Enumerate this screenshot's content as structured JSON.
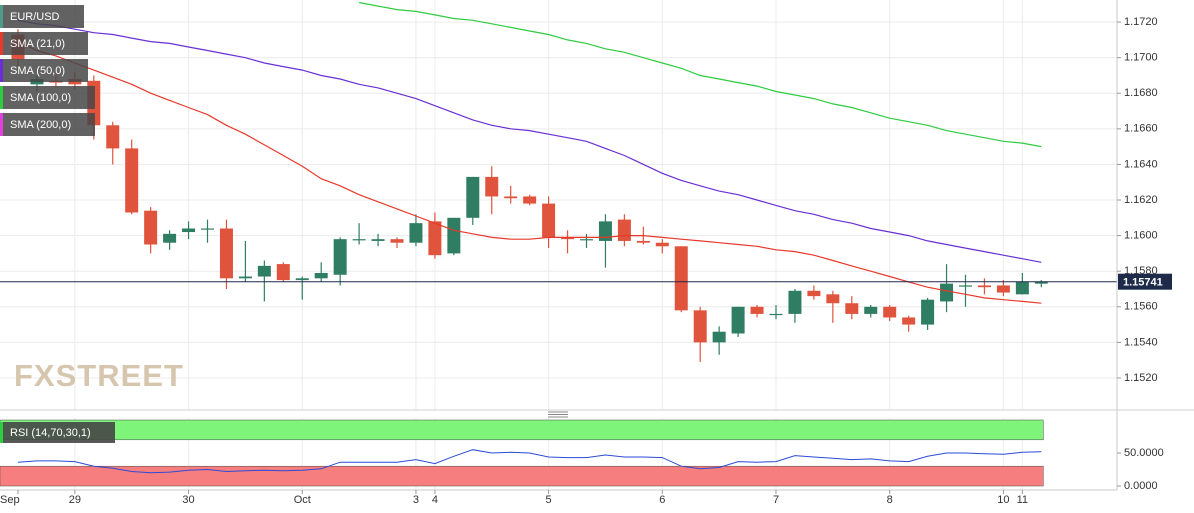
{
  "chart_data": [
    {
      "type": "candlestick",
      "title": "EUR/USD",
      "watermark": "FXSTREET",
      "categories": [
        "Sep",
        null,
        null,
        "29",
        null,
        null,
        null,
        null,
        null,
        "30",
        null,
        null,
        null,
        null,
        null,
        "Oct",
        null,
        null,
        null,
        null,
        null,
        "3",
        "4",
        null,
        null,
        null,
        null,
        null,
        "5",
        null,
        null,
        null,
        null,
        null,
        "6",
        null,
        null,
        null,
        null,
        null,
        "7",
        null,
        null,
        null,
        null,
        null,
        "8",
        null,
        null,
        null,
        null,
        null,
        "10",
        "11",
        null
      ],
      "open": [
        1.1713,
        1.1685,
        1.1687,
        1.1688,
        1.1687,
        1.1662,
        1.1649,
        1.1614,
        1.1596,
        1.1602,
        1.1604,
        1.1604,
        1.1576,
        1.1577,
        1.1584,
        1.1575,
        1.1576,
        1.1578,
        1.1598,
        1.1597,
        1.1598,
        1.1596,
        1.1608,
        1.159,
        1.161,
        1.1633,
        1.1622,
        1.1622,
        1.1618,
        1.1599,
        1.1598,
        1.1597,
        1.1609,
        1.1597,
        1.1596,
        1.1594,
        1.1558,
        1.154,
        1.1545,
        1.156,
        1.1556,
        1.1556,
        1.1569,
        1.1567,
        1.1562,
        1.1556,
        1.156,
        1.1554,
        1.155,
        1.1563,
        1.1572,
        1.1572,
        1.1572,
        1.1567,
        1.1573
      ],
      "high": [
        1.1716,
        1.169,
        1.169,
        1.1692,
        1.169,
        1.1664,
        1.1654,
        1.1616,
        1.1603,
        1.1608,
        1.1609,
        1.1609,
        1.1597,
        1.1586,
        1.1585,
        1.1577,
        1.1585,
        1.1599,
        1.1607,
        1.1601,
        1.1599,
        1.1612,
        1.1613,
        1.161,
        1.1633,
        1.1639,
        1.1628,
        1.1623,
        1.1622,
        1.1603,
        1.1601,
        1.1612,
        1.1612,
        1.1605,
        1.1598,
        1.1594,
        1.156,
        1.1549,
        1.156,
        1.1561,
        1.1561,
        1.157,
        1.1572,
        1.1569,
        1.1566,
        1.1561,
        1.1561,
        1.1555,
        1.1565,
        1.1584,
        1.1578,
        1.1576,
        1.1575,
        1.1579,
        1.1575
      ],
      "low": [
        1.1693,
        1.1681,
        1.1683,
        1.1682,
        1.1654,
        1.164,
        1.1612,
        1.159,
        1.1592,
        1.1598,
        1.1596,
        1.157,
        1.1574,
        1.1563,
        1.1574,
        1.1564,
        1.1574,
        1.1572,
        1.1595,
        1.1594,
        1.1593,
        1.1594,
        1.1587,
        1.1589,
        1.1606,
        1.1612,
        1.1618,
        1.1617,
        1.1593,
        1.159,
        1.1593,
        1.1582,
        1.1594,
        1.1595,
        1.159,
        1.1557,
        1.1529,
        1.1533,
        1.1543,
        1.1554,
        1.1553,
        1.1551,
        1.1564,
        1.1551,
        1.1553,
        1.1554,
        1.1552,
        1.1546,
        1.1547,
        1.1557,
        1.156,
        1.1567,
        1.1566,
        1.1567,
        1.1571
      ],
      "close": [
        1.1699,
        1.1688,
        1.1686,
        1.1685,
        1.1662,
        1.1649,
        1.1613,
        1.1595,
        1.1601,
        1.1604,
        1.1604,
        1.1576,
        1.1577,
        1.1583,
        1.1575,
        1.1576,
        1.1579,
        1.1598,
        1.1598,
        1.1598,
        1.1596,
        1.1607,
        1.1589,
        1.161,
        1.1633,
        1.1622,
        1.1621,
        1.1618,
        1.1599,
        1.1598,
        1.1598,
        1.1608,
        1.1597,
        1.1596,
        1.1594,
        1.1558,
        1.154,
        1.1546,
        1.156,
        1.1556,
        1.1556,
        1.1569,
        1.1566,
        1.1562,
        1.1556,
        1.156,
        1.1554,
        1.155,
        1.1564,
        1.1573,
        1.1572,
        1.1571,
        1.1568,
        1.1574,
        1.1574
      ],
      "up_color": "#2f7d62",
      "down_color": "#e0533d",
      "series": [
        {
          "name": "SMA (21,0)",
          "color": "#e8382a",
          "values": [
            1.1709,
            1.1704,
            1.1701,
            1.1697,
            1.1693,
            1.1689,
            1.1685,
            1.168,
            1.1676,
            1.1672,
            1.1668,
            1.1662,
            1.1657,
            1.1651,
            1.1645,
            1.1639,
            1.1632,
            1.1628,
            1.1623,
            1.1619,
            1.1615,
            1.1611,
            1.1607,
            1.1603,
            1.1601,
            1.1599,
            1.1598,
            1.1598,
            1.1599,
            1.1599,
            1.1599,
            1.1599,
            1.16,
            1.16,
            1.1599,
            1.1598,
            1.1597,
            1.1596,
            1.1595,
            1.1594,
            1.1592,
            1.1591,
            1.1589,
            1.1586,
            1.1583,
            1.158,
            1.1577,
            1.1574,
            1.1571,
            1.1569,
            1.1567,
            1.1565,
            1.1564,
            1.1563,
            1.1562
          ]
        },
        {
          "name": "SMA (50,0)",
          "color": "#6a2fd4",
          "values": [
            1.1721,
            1.1719,
            1.1718,
            1.1716,
            1.1714,
            1.1713,
            1.1711,
            1.1709,
            1.1708,
            1.1706,
            1.1704,
            1.1702,
            1.17,
            1.1697,
            1.1695,
            1.1693,
            1.169,
            1.1688,
            1.1685,
            1.1683,
            1.168,
            1.1677,
            1.1673,
            1.1669,
            1.1665,
            1.1662,
            1.166,
            1.1659,
            1.1657,
            1.1655,
            1.1653,
            1.1649,
            1.1645,
            1.164,
            1.1635,
            1.1631,
            1.1628,
            1.1625,
            1.1623,
            1.162,
            1.1617,
            1.1614,
            1.1612,
            1.1609,
            1.1607,
            1.1604,
            1.1602,
            1.16,
            1.1597,
            1.1595,
            1.1593,
            1.1591,
            1.1589,
            1.1587,
            1.1585
          ]
        },
        {
          "name": "SMA (100,0)",
          "color": "#2ecc40",
          "values": [
            null,
            null,
            null,
            null,
            null,
            null,
            null,
            null,
            null,
            null,
            null,
            null,
            null,
            null,
            null,
            null,
            null,
            null,
            1.1731,
            1.1729,
            1.1727,
            1.1726,
            1.1724,
            1.1722,
            1.1721,
            1.1719,
            1.1717,
            1.1715,
            1.1713,
            1.171,
            1.1708,
            1.1705,
            1.1703,
            1.17,
            1.1697,
            1.1694,
            1.169,
            1.1688,
            1.1686,
            1.1684,
            1.1681,
            1.1679,
            1.1677,
            1.1674,
            1.1672,
            1.1669,
            1.1666,
            1.1664,
            1.1662,
            1.1659,
            1.1657,
            1.1655,
            1.1653,
            1.1652,
            1.165
          ]
        },
        {
          "name": "SMA (200,0)",
          "color": "#e040e0",
          "values": [
            null,
            null,
            null,
            null,
            null,
            null,
            null,
            null,
            null,
            null,
            null,
            null,
            null,
            null,
            null,
            null,
            null,
            null,
            null,
            null,
            null,
            null,
            null,
            null,
            null,
            null,
            null,
            null,
            null,
            null,
            null,
            null,
            null,
            null,
            null,
            null,
            null,
            null,
            null,
            null,
            null,
            null,
            null,
            null,
            null,
            null,
            null,
            null,
            null,
            null,
            null,
            null,
            null,
            null,
            null
          ]
        }
      ],
      "ylim": [
        1.1502,
        1.17324
      ],
      "yticks": [
        {
          "value": 1.172,
          "label": "1.1720"
        },
        {
          "value": 1.17,
          "label": "1.1700"
        },
        {
          "value": 1.168,
          "label": "1.1680"
        },
        {
          "value": 1.166,
          "label": "1.1660"
        },
        {
          "value": 1.164,
          "label": "1.1640"
        },
        {
          "value": 1.162,
          "label": "1.1620"
        },
        {
          "value": 1.16,
          "label": "1.1600"
        },
        {
          "value": 1.158,
          "label": "1.1580"
        },
        {
          "value": 1.156,
          "label": "1.1560"
        },
        {
          "value": 1.154,
          "label": "1.1540"
        },
        {
          "value": 1.152,
          "label": "1.1520"
        }
      ],
      "last_price": 1.15741,
      "grid": true
    },
    {
      "type": "line",
      "title": "RSI (14,70,30,1)",
      "color": "#2a4bd7",
      "values": [
        36,
        38,
        38,
        37,
        30,
        27,
        22,
        20,
        21,
        24,
        25,
        22,
        23,
        24,
        23,
        24,
        26,
        36,
        36,
        36,
        36,
        40,
        34,
        45,
        55,
        50,
        51,
        50,
        44,
        43,
        43,
        47,
        44,
        44,
        43,
        30,
        26,
        28,
        37,
        36,
        37,
        46,
        44,
        42,
        40,
        41,
        38,
        37,
        45,
        50,
        50,
        49,
        48,
        51,
        52
      ],
      "overbought": 70,
      "oversold": 30,
      "ylim": [
        0,
        100
      ],
      "yticks": [
        {
          "value": 50,
          "label": "50.0000"
        },
        {
          "value": 0,
          "label": "0.0000"
        }
      ]
    }
  ]
}
